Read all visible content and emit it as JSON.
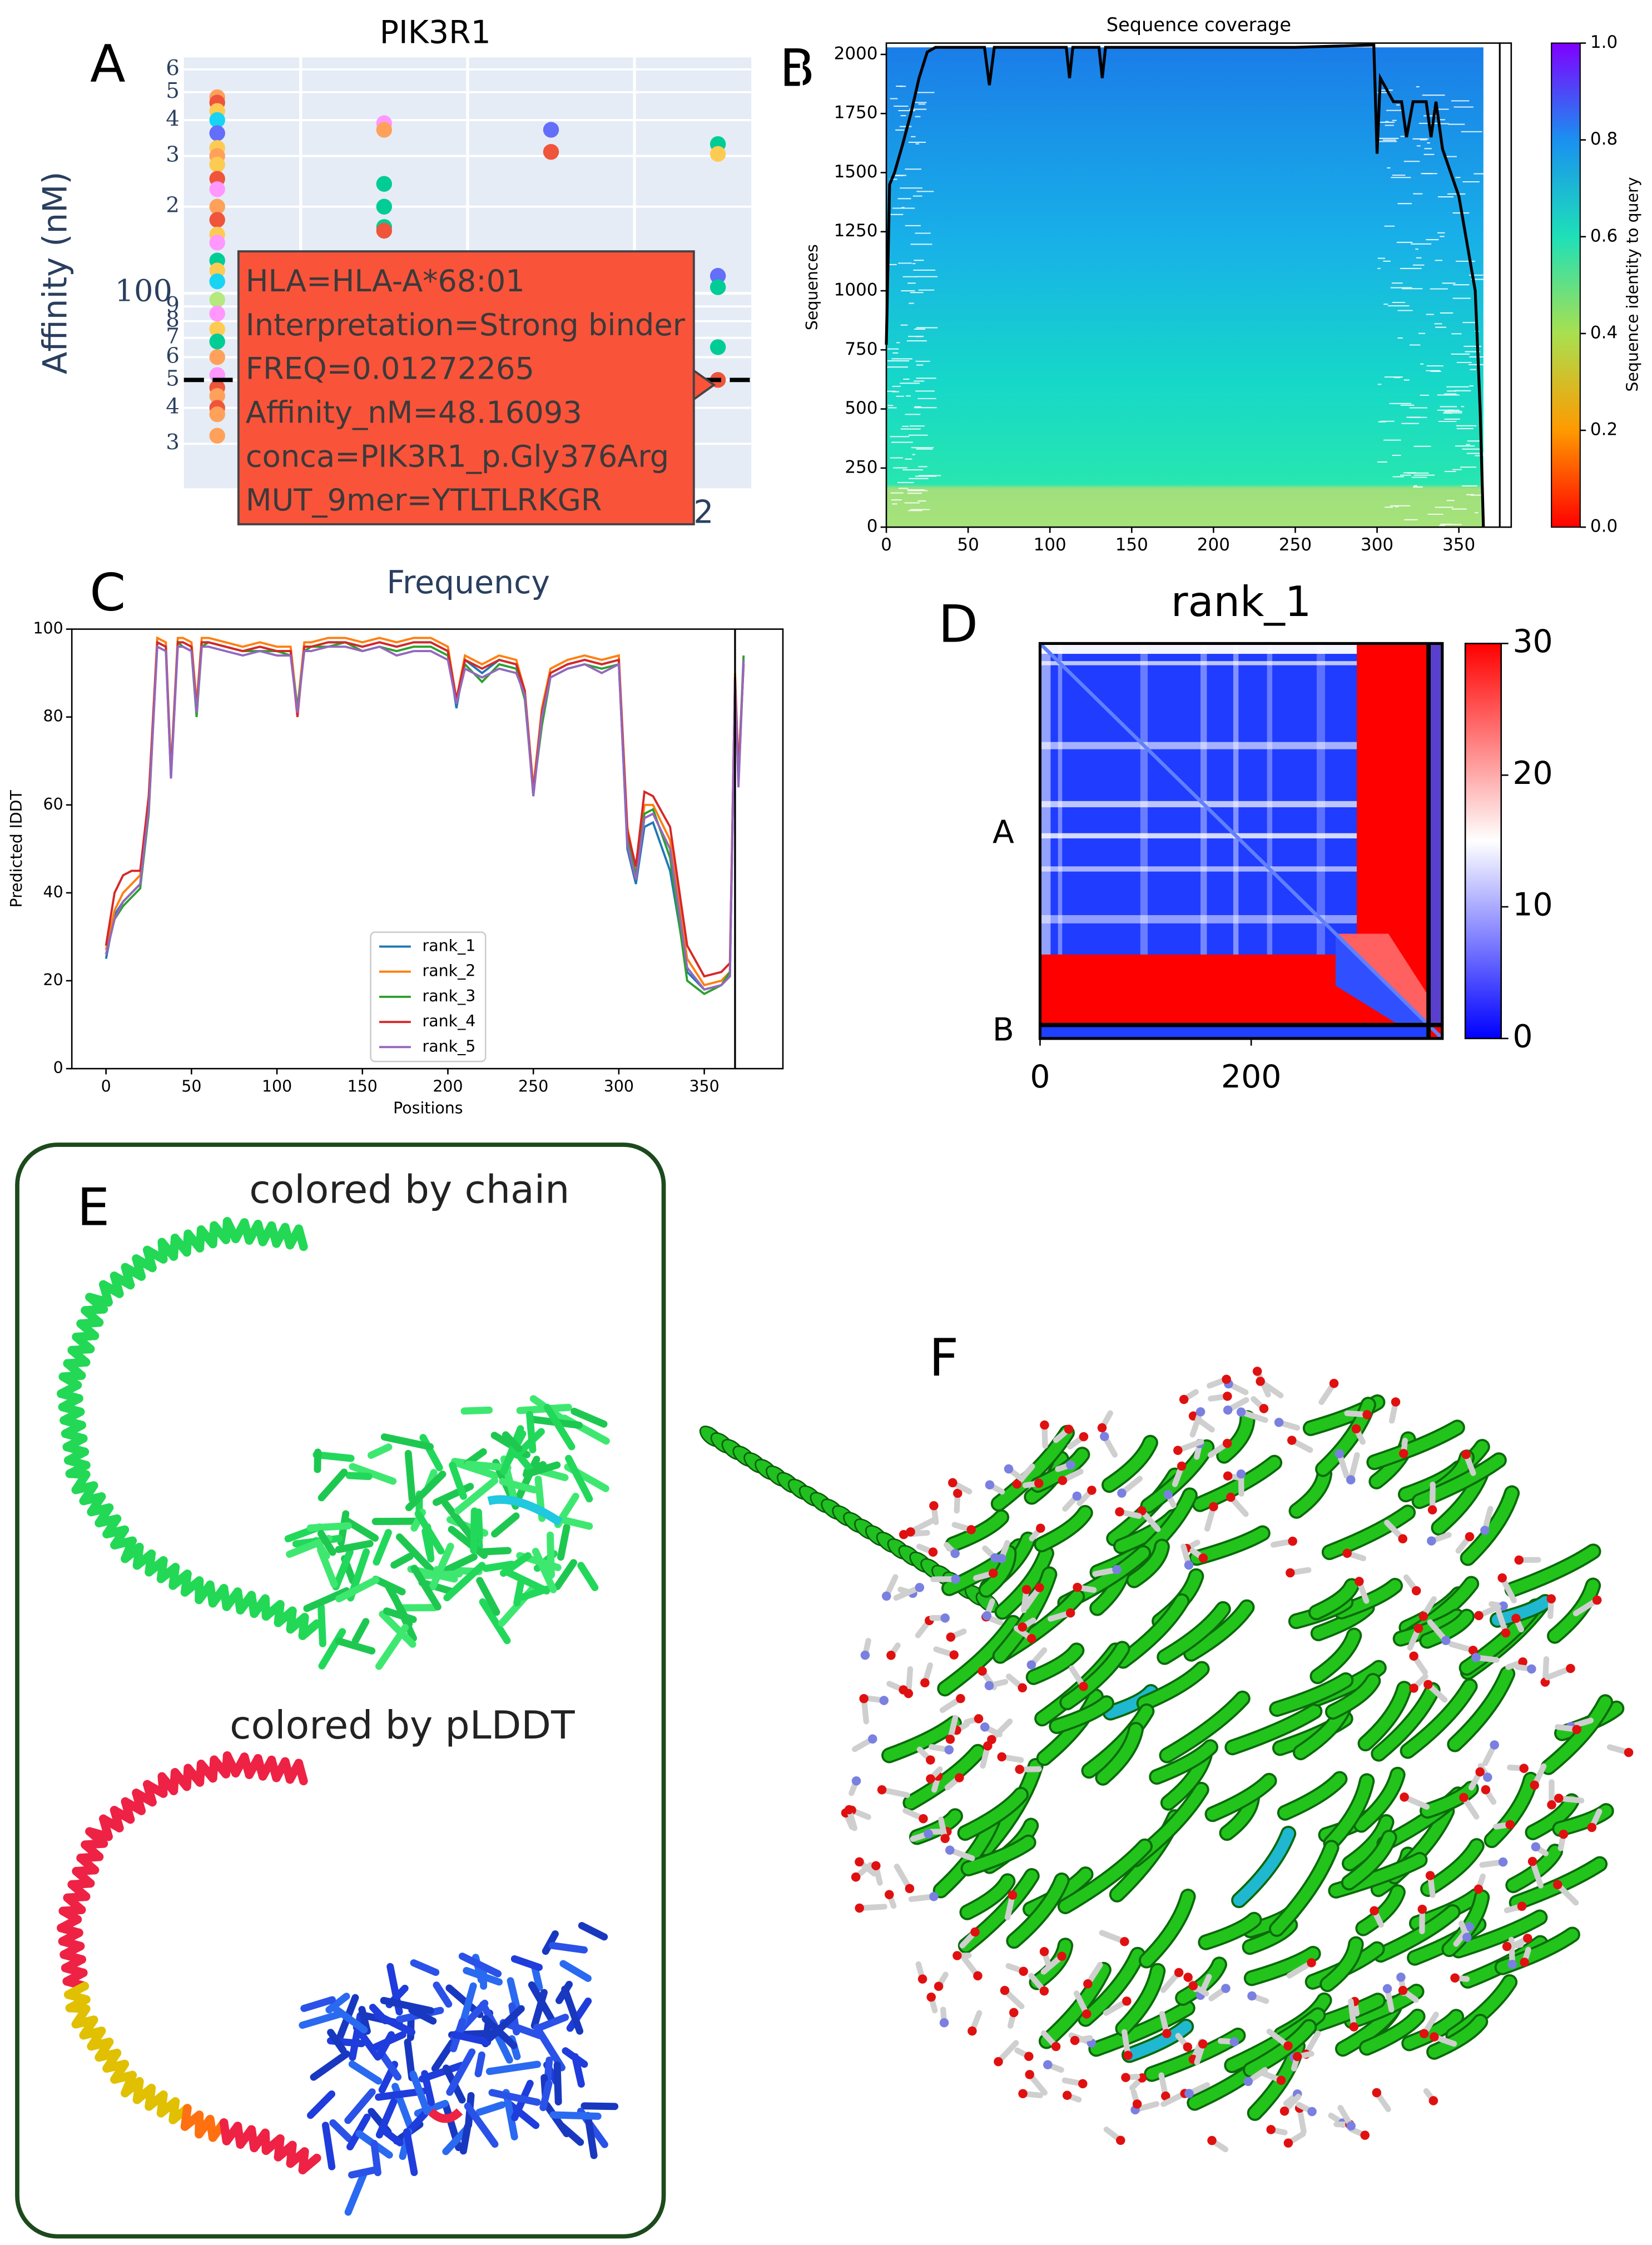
{
  "panel_labels": [
    "A",
    "B",
    "C",
    "D",
    "E",
    "F"
  ],
  "chart_data": [
    {
      "type": "scatter",
      "title": "PIK3R1",
      "y_label": "Affinity (nM)",
      "x_label": "Frequency",
      "categories": [
        null,
        null,
        null,
        "2"
      ],
      "log_y": true,
      "grid": true,
      "ylim": [
        21,
        660
      ],
      "yticks": [
        {
          "value": 600,
          "label": "6"
        },
        {
          "value": 500,
          "label": "5"
        },
        {
          "value": 400,
          "label": "4"
        },
        {
          "value": 300,
          "label": "3"
        },
        {
          "value": 200,
          "label": "2"
        },
        100,
        {
          "value": 90,
          "label": "9"
        },
        {
          "value": 80,
          "label": "8"
        },
        {
          "value": 70,
          "label": "7"
        },
        {
          "value": 60,
          "label": "6"
        },
        {
          "value": 50,
          "label": "5"
        },
        {
          "value": 40,
          "label": "4"
        },
        {
          "value": 30,
          "label": "3"
        }
      ],
      "reference_line": 50,
      "points": [
        {
          "category": 0,
          "value": 480,
          "color": "#ffa15a"
        },
        {
          "category": 0,
          "value": 460,
          "color": "#ef553b"
        },
        {
          "category": 0,
          "value": 430,
          "color": "#fecb52"
        },
        {
          "category": 0,
          "value": 400,
          "color": "#19d3f3"
        },
        {
          "category": 0,
          "value": 360,
          "color": "#636efa"
        },
        {
          "category": 0,
          "value": 320,
          "color": "#fecb52"
        },
        {
          "category": 0,
          "value": 300,
          "color": "#ffa15a"
        },
        {
          "category": 0,
          "value": 280,
          "color": "#fecb52"
        },
        {
          "category": 0,
          "value": 250,
          "color": "#ef553b"
        },
        {
          "category": 0,
          "value": 230,
          "color": "#ff97ff"
        },
        {
          "category": 0,
          "value": 200,
          "color": "#ffa15a"
        },
        {
          "category": 0,
          "value": 180,
          "color": "#ef553b"
        },
        {
          "category": 0,
          "value": 160,
          "color": "#fecb52"
        },
        {
          "category": 0,
          "value": 150,
          "color": "#ff97ff"
        },
        {
          "category": 0,
          "value": 130,
          "color": "#00cc96"
        },
        {
          "category": 0,
          "value": 120,
          "color": "#fecb52"
        },
        {
          "category": 0,
          "value": 110,
          "color": "#19d3f3"
        },
        {
          "category": 0,
          "value": 95,
          "color": "#b6e880"
        },
        {
          "category": 0,
          "value": 85,
          "color": "#ff97ff"
        },
        {
          "category": 0,
          "value": 75,
          "color": "#fecb52"
        },
        {
          "category": 0,
          "value": 68,
          "color": "#00cc96"
        },
        {
          "category": 0,
          "value": 60,
          "color": "#ffa15a"
        },
        {
          "category": 0,
          "value": 52,
          "color": "#ff97ff"
        },
        {
          "category": 0,
          "value": 47,
          "color": "#ef553b"
        },
        {
          "category": 0,
          "value": 44,
          "color": "#ffa15a"
        },
        {
          "category": 0,
          "value": 40,
          "color": "#ef553b"
        },
        {
          "category": 0,
          "value": 38,
          "color": "#ffa15a"
        },
        {
          "category": 0,
          "value": 32,
          "color": "#ffa15a"
        },
        {
          "category": 1,
          "value": 390,
          "color": "#ff97ff"
        },
        {
          "category": 1,
          "value": 370,
          "color": "#ffa15a"
        },
        {
          "category": 1,
          "value": 240,
          "color": "#00cc96"
        },
        {
          "category": 1,
          "value": 200,
          "color": "#00cc96"
        },
        {
          "category": 1,
          "value": 170,
          "color": "#00cc96"
        },
        {
          "category": 1,
          "value": 165,
          "color": "#ef553b"
        },
        {
          "category": 2,
          "value": 370,
          "color": "#636efa"
        },
        {
          "category": 2,
          "value": 310,
          "color": "#ef553b"
        },
        {
          "category": 3,
          "value": 330,
          "color": "#00cc96"
        },
        {
          "category": 3,
          "value": 305,
          "color": "#fecb52"
        },
        {
          "category": 3,
          "value": 115,
          "color": "#636efa"
        },
        {
          "category": 3,
          "value": 105,
          "color": "#00cc96"
        },
        {
          "category": 3,
          "value": 65,
          "color": "#00cc96"
        },
        {
          "category": 3,
          "value": 50,
          "color": "#ef553b"
        }
      ],
      "tooltip": [
        "HLA=HLA-A*68:01",
        "Interpretation=Strong binder",
        "FREQ=0.01272265",
        "Affinity_nM=48.16093",
        "conca=PIK3R1_p.Gly376Arg",
        "MUT_9mer=YTLTLRKGR"
      ]
    },
    {
      "type": "coverage",
      "title": "Sequence coverage",
      "y_label": "Sequences",
      "colorbar_label": "Sequence identity to query",
      "xlim": [
        0,
        382
      ],
      "xticks": [
        0,
        50,
        100,
        150,
        200,
        250,
        300,
        350
      ],
      "ylim": [
        0,
        2048
      ],
      "yticks": [
        0,
        250,
        500,
        750,
        1000,
        1250,
        1500,
        1750,
        2000
      ],
      "clim": [
        0,
        1
      ],
      "cticks": [
        {
          "value": 0,
          "label": "0.0"
        },
        0.2,
        0.4,
        0.6,
        0.8,
        {
          "value": 1,
          "label": "1.0"
        }
      ],
      "coverage": {
        "x": [
          0,
          2,
          5,
          10,
          15,
          20,
          25,
          30,
          60,
          63,
          66,
          110,
          112,
          114,
          130,
          132,
          134,
          250,
          298,
          300,
          302,
          310,
          315,
          318,
          322,
          330,
          333,
          336,
          340,
          350,
          360,
          363,
          365
        ],
        "y": [
          772,
          1450,
          1500,
          1620,
          1750,
          1900,
          2010,
          2030,
          2030,
          1870,
          2030,
          2030,
          1900,
          2030,
          2030,
          1900,
          2030,
          2030,
          2040,
          1580,
          1900,
          1800,
          1800,
          1650,
          1800,
          1800,
          1650,
          1800,
          1600,
          1400,
          1000,
          500,
          0
        ]
      }
    },
    {
      "type": "line",
      "x_label": "Positions",
      "y_label": "Predicted lDDT",
      "xlim": [
        -20,
        396
      ],
      "xticks": [
        0,
        50,
        100,
        150,
        200,
        250,
        300,
        350
      ],
      "ylim": [
        0,
        100
      ],
      "yticks": [
        0,
        20,
        40,
        60,
        80,
        100
      ],
      "vline": 368,
      "x": [
        0,
        5,
        10,
        15,
        20,
        25,
        30,
        35,
        38,
        42,
        45,
        50,
        53,
        56,
        60,
        70,
        80,
        90,
        100,
        108,
        112,
        116,
        120,
        130,
        140,
        150,
        160,
        170,
        180,
        190,
        200,
        205,
        210,
        220,
        230,
        240,
        245,
        250,
        255,
        260,
        270,
        280,
        290,
        300,
        305,
        310,
        315,
        320,
        330,
        340,
        350,
        360,
        365,
        368,
        370,
        373
      ],
      "series": [
        {
          "name": "rank_1",
          "color": "#1f77b4",
          "values": [
            25,
            35,
            38,
            40,
            42,
            60,
            97,
            96,
            66,
            97,
            97,
            96,
            81,
            97,
            97,
            96,
            95,
            96,
            95,
            95,
            81,
            96,
            96,
            97,
            97,
            96,
            97,
            96,
            97,
            97,
            95,
            82,
            93,
            90,
            93,
            92,
            85,
            62,
            80,
            90,
            92,
            93,
            92,
            93,
            50,
            42,
            55,
            56,
            45,
            22,
            18,
            19,
            21,
            88,
            65,
            93
          ]
        },
        {
          "name": "rank_2",
          "color": "#ff7f0e",
          "values": [
            27,
            36,
            40,
            42,
            44,
            62,
            98,
            97,
            68,
            98,
            98,
            97,
            83,
            98,
            98,
            97,
            96,
            97,
            96,
            96,
            82,
            97,
            97,
            98,
            98,
            97,
            98,
            97,
            98,
            98,
            96,
            84,
            94,
            92,
            94,
            93,
            86,
            64,
            82,
            91,
            93,
            94,
            93,
            94,
            55,
            45,
            60,
            60,
            52,
            25,
            19,
            20,
            22,
            90,
            68,
            92
          ]
        },
        {
          "name": "rank_3",
          "color": "#2ca02c",
          "values": [
            26,
            34,
            37,
            39,
            41,
            58,
            97,
            96,
            67,
            97,
            96,
            95,
            80,
            96,
            97,
            96,
            95,
            95,
            95,
            94,
            82,
            95,
            96,
            96,
            97,
            95,
            96,
            95,
            96,
            96,
            94,
            83,
            92,
            88,
            92,
            91,
            84,
            63,
            78,
            89,
            91,
            92,
            91,
            92,
            52,
            44,
            58,
            59,
            48,
            20,
            17,
            19,
            22,
            89,
            66,
            94
          ]
        },
        {
          "name": "rank_4",
          "color": "#d62728",
          "values": [
            28,
            40,
            44,
            45,
            45,
            62,
            97,
            96,
            67,
            97,
            97,
            96,
            82,
            97,
            97,
            96,
            95,
            96,
            95,
            95,
            80,
            96,
            96,
            97,
            97,
            96,
            97,
            96,
            97,
            97,
            95,
            84,
            93,
            91,
            93,
            92,
            86,
            63,
            81,
            90,
            92,
            93,
            92,
            93,
            54,
            46,
            63,
            62,
            55,
            28,
            21,
            22,
            24,
            89,
            67,
            92
          ]
        },
        {
          "name": "rank_5",
          "color": "#9467bd",
          "values": [
            26,
            34,
            38,
            40,
            42,
            59,
            96,
            95,
            66,
            96,
            96,
            95,
            81,
            96,
            96,
            95,
            94,
            95,
            94,
            94,
            81,
            95,
            95,
            96,
            96,
            95,
            96,
            94,
            95,
            95,
            93,
            83,
            91,
            89,
            91,
            90,
            85,
            62,
            80,
            89,
            91,
            92,
            90,
            92,
            51,
            43,
            57,
            58,
            50,
            23,
            18,
            19,
            21,
            88,
            64,
            93
          ]
        }
      ]
    },
    {
      "type": "pae",
      "title": "rank_1",
      "xlim": [
        0,
        381
      ],
      "xticks": [
        0,
        200
      ],
      "chains": [
        {
          "label": "A",
          "length": 368
        },
        {
          "label": "B",
          "length": 13
        }
      ],
      "clim": [
        0,
        30
      ],
      "cticks": [
        0,
        10,
        20,
        30
      ]
    }
  ],
  "structure_panel": {
    "titles": [
      "colored by chain",
      "colored by pLDDT"
    ]
  }
}
